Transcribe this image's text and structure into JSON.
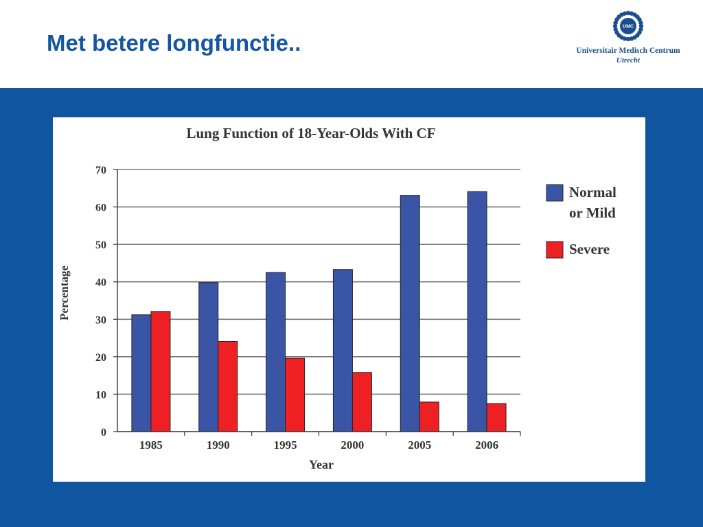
{
  "slide": {
    "title": "Met betere longfunctie.."
  },
  "logo": {
    "mark_text": "UMC",
    "name": "Universitair Medisch Centrum",
    "city": "Utrecht",
    "color": "#1a4e8f"
  },
  "colors": {
    "band": "#0f55a0",
    "title": "#1556a0",
    "series_normal": "#3b55a6",
    "series_severe": "#ee2024"
  },
  "chart_data": {
    "type": "bar",
    "title": "Lung Function of 18-Year-Olds With CF",
    "xlabel": "Year",
    "ylabel": "Percentage",
    "categories": [
      "1985",
      "1990",
      "1995",
      "2000",
      "2005",
      "2006"
    ],
    "series": [
      {
        "name": "Normal or Mild",
        "legend_lines": [
          "Normal",
          "or Mild"
        ],
        "color": "#3b55a6",
        "values": [
          31.2,
          39.8,
          42.5,
          43.3,
          63.1,
          64.1
        ]
      },
      {
        "name": "Severe",
        "legend_lines": [
          "Severe"
        ],
        "color": "#ee2024",
        "values": [
          32.1,
          24.1,
          19.6,
          15.8,
          7.9,
          7.5
        ]
      }
    ],
    "ylim": [
      0,
      70
    ],
    "yticks": [
      0,
      10,
      20,
      30,
      40,
      50,
      60,
      70
    ],
    "grid": true,
    "legend_position": "right"
  }
}
